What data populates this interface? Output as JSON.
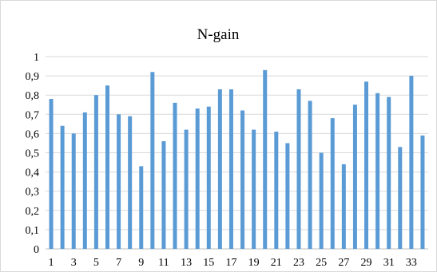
{
  "chart_data": {
    "type": "bar",
    "title": "N-gain",
    "xlabel": "",
    "ylabel": "",
    "ylim": [
      0,
      1
    ],
    "yticks": [
      "0",
      "0,1",
      "0,2",
      "0,3",
      "0,4",
      "0,5",
      "0,6",
      "0,7",
      "0,8",
      "0,9",
      "1"
    ],
    "ytick_values": [
      0,
      0.1,
      0.2,
      0.3,
      0.4,
      0.5,
      0.6,
      0.7,
      0.8,
      0.9,
      1
    ],
    "xtick_labels": [
      "1",
      "3",
      "5",
      "7",
      "9",
      "11",
      "13",
      "15",
      "17",
      "19",
      "21",
      "23",
      "25",
      "27",
      "29",
      "31",
      "33"
    ],
    "categories": [
      "1",
      "2",
      "3",
      "4",
      "5",
      "6",
      "7",
      "8",
      "9",
      "10",
      "11",
      "12",
      "13",
      "14",
      "15",
      "16",
      "17",
      "18",
      "19",
      "20",
      "21",
      "22",
      "23",
      "24",
      "25",
      "26",
      "27",
      "28",
      "29",
      "30",
      "31",
      "32",
      "33",
      "34"
    ],
    "values": [
      0.78,
      0.64,
      0.6,
      0.71,
      0.8,
      0.85,
      0.7,
      0.69,
      0.43,
      0.92,
      0.56,
      0.76,
      0.62,
      0.73,
      0.74,
      0.83,
      0.83,
      0.72,
      0.62,
      0.93,
      0.61,
      0.55,
      0.83,
      0.77,
      0.5,
      0.68,
      0.44,
      0.75,
      0.87,
      0.81,
      0.79,
      0.53,
      0.9,
      0.59
    ],
    "grid": true,
    "legend": "none",
    "bar_color": "#5b9bd5"
  }
}
